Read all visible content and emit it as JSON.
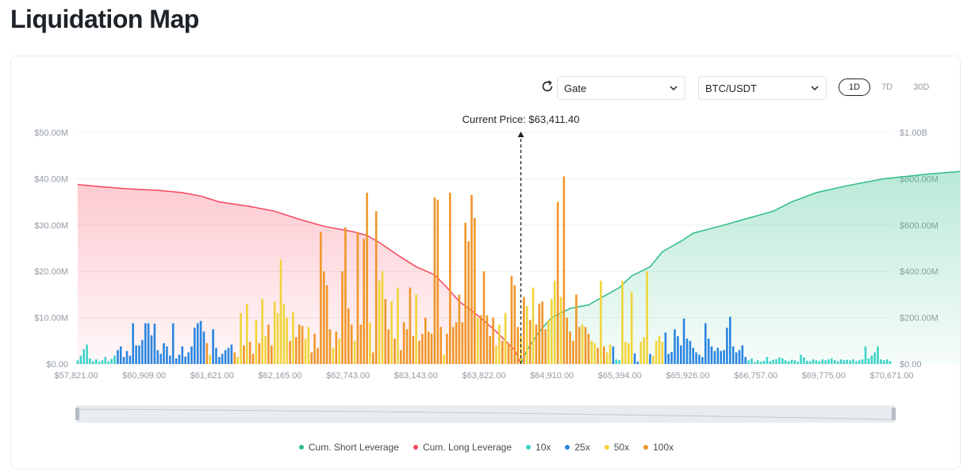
{
  "page": {
    "title": "Liquidation Map"
  },
  "controls": {
    "exchange": "Gate",
    "pair": "BTC/USDT",
    "periods": [
      "1D",
      "7D",
      "30D"
    ],
    "active_period": "1D"
  },
  "colors": {
    "cum_short": "#2ebd85",
    "cum_long": "#f6465d",
    "lev_10x": "#3dd3c9",
    "lev_25x": "#2a85e0",
    "lev_50x": "#f0d43a",
    "lev_100x": "#f0962a"
  },
  "chart_data": {
    "type": "bar",
    "current_price_label": "Current Price: $63,411.40",
    "current_price_index": 144,
    "left_axis": {
      "ticks": [
        "$0.00",
        "$10.00M",
        "$20.00M",
        "$30.00M",
        "$40.00M",
        "$50.00M"
      ],
      "max": 50
    },
    "right_axis": {
      "ticks": [
        "$0.00",
        "$200.00M",
        "$400.00M",
        "$600.00M",
        "$800.00M",
        "$1.00B"
      ],
      "max": 1000
    },
    "x_tick_labels": [
      "$57,821.00",
      "$60,909.00",
      "$61,621.00",
      "$62,165.00",
      "$62,743.00",
      "$63,143.00",
      "$63,822.00",
      "$64,910.00",
      "$65,394.00",
      "$65,926.00",
      "$66,757.00",
      "$69,775.00",
      "$70,671.00"
    ],
    "bars": [
      {
        "v": 0.8,
        "l": "10x"
      },
      {
        "v": 1.8,
        "l": "10x"
      },
      {
        "v": 3.2,
        "l": "10x"
      },
      {
        "v": 4.2,
        "l": "10x"
      },
      {
        "v": 1.2,
        "l": "10x"
      },
      {
        "v": 0.6,
        "l": "10x"
      },
      {
        "v": 1.0,
        "l": "10x"
      },
      {
        "v": 0.5,
        "l": "10x"
      },
      {
        "v": 0.8,
        "l": "10x"
      },
      {
        "v": 1.5,
        "l": "10x"
      },
      {
        "v": 0.6,
        "l": "10x"
      },
      {
        "v": 1.1,
        "l": "10x"
      },
      {
        "v": 1.8,
        "l": "10x"
      },
      {
        "v": 3.0,
        "l": "25x"
      },
      {
        "v": 3.8,
        "l": "25x"
      },
      {
        "v": 1.5,
        "l": "25x"
      },
      {
        "v": 2.8,
        "l": "25x"
      },
      {
        "v": 1.8,
        "l": "25x"
      },
      {
        "v": 8.8,
        "l": "25x"
      },
      {
        "v": 4.0,
        "l": "25x"
      },
      {
        "v": 4.0,
        "l": "25x"
      },
      {
        "v": 5.2,
        "l": "25x"
      },
      {
        "v": 8.8,
        "l": "25x"
      },
      {
        "v": 8.8,
        "l": "25x"
      },
      {
        "v": 6.2,
        "l": "25x"
      },
      {
        "v": 8.7,
        "l": "25x"
      },
      {
        "v": 3.0,
        "l": "25x"
      },
      {
        "v": 2.2,
        "l": "25x"
      },
      {
        "v": 4.5,
        "l": "25x"
      },
      {
        "v": 3.8,
        "l": "25x"
      },
      {
        "v": 1.8,
        "l": "25x"
      },
      {
        "v": 8.8,
        "l": "25x"
      },
      {
        "v": 1.2,
        "l": "25x"
      },
      {
        "v": 2.0,
        "l": "25x"
      },
      {
        "v": 3.8,
        "l": "25x"
      },
      {
        "v": 1.6,
        "l": "25x"
      },
      {
        "v": 2.5,
        "l": "25x"
      },
      {
        "v": 3.8,
        "l": "25x"
      },
      {
        "v": 7.8,
        "l": "25x"
      },
      {
        "v": 8.8,
        "l": "25x"
      },
      {
        "v": 9.3,
        "l": "25x"
      },
      {
        "v": 7.0,
        "l": "25x"
      },
      {
        "v": 4.5,
        "l": "100x"
      },
      {
        "v": 2.0,
        "l": "50x"
      },
      {
        "v": 7.5,
        "l": "25x"
      },
      {
        "v": 3.5,
        "l": "25x"
      },
      {
        "v": 1.5,
        "l": "25x"
      },
      {
        "v": 2.2,
        "l": "25x"
      },
      {
        "v": 3.0,
        "l": "25x"
      },
      {
        "v": 3.5,
        "l": "25x"
      },
      {
        "v": 4.2,
        "l": "25x"
      },
      {
        "v": 2.5,
        "l": "100x"
      },
      {
        "v": 1.5,
        "l": "50x"
      },
      {
        "v": 11.0,
        "l": "50x"
      },
      {
        "v": 4.0,
        "l": "100x"
      },
      {
        "v": 13.0,
        "l": "50x"
      },
      {
        "v": 4.8,
        "l": "100x"
      },
      {
        "v": 2.2,
        "l": "100x"
      },
      {
        "v": 9.5,
        "l": "50x"
      },
      {
        "v": 4.5,
        "l": "100x"
      },
      {
        "v": 14.0,
        "l": "50x"
      },
      {
        "v": 6.0,
        "l": "50x"
      },
      {
        "v": 8.5,
        "l": "100x"
      },
      {
        "v": 4.0,
        "l": "100x"
      },
      {
        "v": 13.5,
        "l": "50x"
      },
      {
        "v": 11.0,
        "l": "50x"
      },
      {
        "v": 22.5,
        "l": "50x"
      },
      {
        "v": 13.0,
        "l": "50x"
      },
      {
        "v": 10.0,
        "l": "50x"
      },
      {
        "v": 5.0,
        "l": "100x"
      },
      {
        "v": 11.2,
        "l": "50x"
      },
      {
        "v": 5.8,
        "l": "100x"
      },
      {
        "v": 8.5,
        "l": "100x"
      },
      {
        "v": 8.2,
        "l": "100x"
      },
      {
        "v": 5.5,
        "l": "50x"
      },
      {
        "v": 8.0,
        "l": "50x"
      },
      {
        "v": 2.5,
        "l": "100x"
      },
      {
        "v": 6.5,
        "l": "100x"
      },
      {
        "v": 3.5,
        "l": "100x"
      },
      {
        "v": 28.5,
        "l": "100x"
      },
      {
        "v": 20.0,
        "l": "100x"
      },
      {
        "v": 17.0,
        "l": "100x"
      },
      {
        "v": 7.5,
        "l": "100x"
      },
      {
        "v": 3.5,
        "l": "50x"
      },
      {
        "v": 7.0,
        "l": "100x"
      },
      {
        "v": 5.5,
        "l": "50x"
      },
      {
        "v": 20.0,
        "l": "100x"
      },
      {
        "v": 29.5,
        "l": "100x"
      },
      {
        "v": 12.0,
        "l": "100x"
      },
      {
        "v": 8.5,
        "l": "100x"
      },
      {
        "v": 5.0,
        "l": "50x"
      },
      {
        "v": 28.5,
        "l": "100x"
      },
      {
        "v": 8.5,
        "l": "100x"
      },
      {
        "v": 27.0,
        "l": "100x"
      },
      {
        "v": 37.0,
        "l": "100x"
      },
      {
        "v": 9.0,
        "l": "50x"
      },
      {
        "v": 2.5,
        "l": "100x"
      },
      {
        "v": 33.0,
        "l": "100x"
      },
      {
        "v": 18.0,
        "l": "50x"
      },
      {
        "v": 20.0,
        "l": "50x"
      },
      {
        "v": 14.0,
        "l": "100x"
      },
      {
        "v": 7.5,
        "l": "100x"
      },
      {
        "v": 13.5,
        "l": "50x"
      },
      {
        "v": 5.5,
        "l": "100x"
      },
      {
        "v": 16.5,
        "l": "50x"
      },
      {
        "v": 3.0,
        "l": "100x"
      },
      {
        "v": 9.0,
        "l": "100x"
      },
      {
        "v": 7.5,
        "l": "100x"
      },
      {
        "v": 16.5,
        "l": "100x"
      },
      {
        "v": 6.0,
        "l": "100x"
      },
      {
        "v": 15.0,
        "l": "50x"
      },
      {
        "v": 5.0,
        "l": "100x"
      },
      {
        "v": 6.5,
        "l": "100x"
      },
      {
        "v": 10.0,
        "l": "100x"
      },
      {
        "v": 7.0,
        "l": "100x"
      },
      {
        "v": 6.5,
        "l": "100x"
      },
      {
        "v": 36.0,
        "l": "100x"
      },
      {
        "v": 35.5,
        "l": "100x"
      },
      {
        "v": 8.0,
        "l": "100x"
      },
      {
        "v": 2.0,
        "l": "50x"
      },
      {
        "v": 6.5,
        "l": "100x"
      },
      {
        "v": 37.0,
        "l": "100x"
      },
      {
        "v": 8.0,
        "l": "100x"
      },
      {
        "v": 9.0,
        "l": "100x"
      },
      {
        "v": 15.0,
        "l": "100x"
      },
      {
        "v": 9.0,
        "l": "100x"
      },
      {
        "v": 30.5,
        "l": "100x"
      },
      {
        "v": 26.5,
        "l": "100x"
      },
      {
        "v": 36.5,
        "l": "100x"
      },
      {
        "v": 31.5,
        "l": "100x"
      },
      {
        "v": 10.0,
        "l": "50x"
      },
      {
        "v": 10.5,
        "l": "100x"
      },
      {
        "v": 20.0,
        "l": "100x"
      },
      {
        "v": 10.5,
        "l": "100x"
      },
      {
        "v": 6.0,
        "l": "100x"
      },
      {
        "v": 10.0,
        "l": "100x"
      },
      {
        "v": 4.0,
        "l": "50x"
      },
      {
        "v": 8.5,
        "l": "50x"
      },
      {
        "v": 5.0,
        "l": "100x"
      },
      {
        "v": 11.0,
        "l": "50x"
      },
      {
        "v": 4.5,
        "l": "100x"
      },
      {
        "v": 19.0,
        "l": "100x"
      },
      {
        "v": 17.0,
        "l": "100x"
      },
      {
        "v": 8.0,
        "l": "100x"
      },
      {
        "v": 6.0,
        "l": "50x"
      },
      {
        "v": 14.5,
        "l": "100x"
      },
      {
        "v": 12.5,
        "l": "50x"
      },
      {
        "v": 9.5,
        "l": "100x"
      },
      {
        "v": 16.5,
        "l": "50x"
      },
      {
        "v": 8.5,
        "l": "100x"
      },
      {
        "v": 13.0,
        "l": "100x"
      },
      {
        "v": 13.5,
        "l": "100x"
      },
      {
        "v": 7.5,
        "l": "100x"
      },
      {
        "v": 9.5,
        "l": "50x"
      },
      {
        "v": 14.0,
        "l": "50x"
      },
      {
        "v": 18.0,
        "l": "50x"
      },
      {
        "v": 35.0,
        "l": "100x"
      },
      {
        "v": 14.5,
        "l": "50x"
      },
      {
        "v": 40.5,
        "l": "100x"
      },
      {
        "v": 10.0,
        "l": "100x"
      },
      {
        "v": 7.0,
        "l": "100x"
      },
      {
        "v": 5.0,
        "l": "100x"
      },
      {
        "v": 15.0,
        "l": "100x"
      },
      {
        "v": 8.0,
        "l": "100x"
      },
      {
        "v": 8.5,
        "l": "50x"
      },
      {
        "v": 8.0,
        "l": "100x"
      },
      {
        "v": 6.5,
        "l": "100x"
      },
      {
        "v": 5.0,
        "l": "50x"
      },
      {
        "v": 4.5,
        "l": "50x"
      },
      {
        "v": 3.5,
        "l": "100x"
      },
      {
        "v": 18.0,
        "l": "50x"
      },
      {
        "v": 3.8,
        "l": "100x"
      },
      {
        "v": 2.5,
        "l": "50x"
      },
      {
        "v": 4.2,
        "l": "50x"
      },
      {
        "v": 3.8,
        "l": "25x"
      },
      {
        "v": 1.0,
        "l": "10x"
      },
      {
        "v": 0.8,
        "l": "10x"
      },
      {
        "v": 18.0,
        "l": "50x"
      },
      {
        "v": 4.8,
        "l": "50x"
      },
      {
        "v": 4.5,
        "l": "50x"
      },
      {
        "v": 15.5,
        "l": "50x"
      },
      {
        "v": 2.3,
        "l": "25x"
      },
      {
        "v": 0.5,
        "l": "25x"
      },
      {
        "v": 4.8,
        "l": "50x"
      },
      {
        "v": 5.8,
        "l": "50x"
      },
      {
        "v": 20.0,
        "l": "50x"
      },
      {
        "v": 2.2,
        "l": "25x"
      },
      {
        "v": 1.8,
        "l": "50x"
      },
      {
        "v": 5.0,
        "l": "50x"
      },
      {
        "v": 6.0,
        "l": "50x"
      },
      {
        "v": 4.8,
        "l": "50x"
      },
      {
        "v": 6.8,
        "l": "25x"
      },
      {
        "v": 2.2,
        "l": "25x"
      },
      {
        "v": 2.6,
        "l": "25x"
      },
      {
        "v": 7.5,
        "l": "25x"
      },
      {
        "v": 6.0,
        "l": "25x"
      },
      {
        "v": 4.0,
        "l": "25x"
      },
      {
        "v": 9.8,
        "l": "25x"
      },
      {
        "v": 5.5,
        "l": "25x"
      },
      {
        "v": 5.0,
        "l": "25x"
      },
      {
        "v": 3.5,
        "l": "25x"
      },
      {
        "v": 2.5,
        "l": "25x"
      },
      {
        "v": 2.0,
        "l": "25x"
      },
      {
        "v": 1.5,
        "l": "25x"
      },
      {
        "v": 8.8,
        "l": "25x"
      },
      {
        "v": 5.5,
        "l": "25x"
      },
      {
        "v": 3.8,
        "l": "25x"
      },
      {
        "v": 2.8,
        "l": "25x"
      },
      {
        "v": 3.5,
        "l": "25x"
      },
      {
        "v": 2.8,
        "l": "25x"
      },
      {
        "v": 3.0,
        "l": "25x"
      },
      {
        "v": 7.8,
        "l": "25x"
      },
      {
        "v": 10.2,
        "l": "25x"
      },
      {
        "v": 3.8,
        "l": "25x"
      },
      {
        "v": 2.5,
        "l": "25x"
      },
      {
        "v": 3.0,
        "l": "25x"
      },
      {
        "v": 4.0,
        "l": "25x"
      },
      {
        "v": 1.5,
        "l": "25x"
      },
      {
        "v": 0.8,
        "l": "10x"
      },
      {
        "v": 1.2,
        "l": "10x"
      },
      {
        "v": 0.4,
        "l": "10x"
      },
      {
        "v": 0.8,
        "l": "10x"
      },
      {
        "v": 0.5,
        "l": "10x"
      },
      {
        "v": 0.7,
        "l": "10x"
      },
      {
        "v": 1.5,
        "l": "10x"
      },
      {
        "v": 0.6,
        "l": "10x"
      },
      {
        "v": 0.9,
        "l": "10x"
      },
      {
        "v": 1.0,
        "l": "10x"
      },
      {
        "v": 1.4,
        "l": "10x"
      },
      {
        "v": 1.2,
        "l": "10x"
      },
      {
        "v": 0.8,
        "l": "10x"
      },
      {
        "v": 0.6,
        "l": "10x"
      },
      {
        "v": 0.9,
        "l": "10x"
      },
      {
        "v": 0.8,
        "l": "10x"
      },
      {
        "v": 0.5,
        "l": "10x"
      },
      {
        "v": 2.0,
        "l": "10x"
      },
      {
        "v": 1.4,
        "l": "10x"
      },
      {
        "v": 0.7,
        "l": "10x"
      },
      {
        "v": 0.6,
        "l": "10x"
      },
      {
        "v": 1.0,
        "l": "10x"
      },
      {
        "v": 0.8,
        "l": "10x"
      },
      {
        "v": 0.6,
        "l": "10x"
      },
      {
        "v": 1.0,
        "l": "10x"
      },
      {
        "v": 0.8,
        "l": "10x"
      },
      {
        "v": 1.0,
        "l": "10x"
      },
      {
        "v": 1.2,
        "l": "10x"
      },
      {
        "v": 0.8,
        "l": "10x"
      },
      {
        "v": 0.6,
        "l": "10x"
      },
      {
        "v": 1.0,
        "l": "10x"
      },
      {
        "v": 0.8,
        "l": "10x"
      },
      {
        "v": 0.9,
        "l": "10x"
      },
      {
        "v": 0.8,
        "l": "10x"
      },
      {
        "v": 1.0,
        "l": "10x"
      },
      {
        "v": 0.6,
        "l": "10x"
      },
      {
        "v": 0.8,
        "l": "10x"
      },
      {
        "v": 1.0,
        "l": "10x"
      },
      {
        "v": 3.8,
        "l": "10x"
      },
      {
        "v": 1.2,
        "l": "10x"
      },
      {
        "v": 1.8,
        "l": "10x"
      },
      {
        "v": 2.5,
        "l": "10x"
      },
      {
        "v": 3.8,
        "l": "10x"
      },
      {
        "v": 1.0,
        "l": "10x"
      },
      {
        "v": 0.8,
        "l": "10x"
      },
      {
        "v": 1.0,
        "l": "10x"
      },
      {
        "v": 0.6,
        "l": "10x"
      }
    ],
    "cum_long": [
      [
        0,
        775
      ],
      [
        8,
        765
      ],
      [
        16,
        757
      ],
      [
        26,
        750
      ],
      [
        34,
        740
      ],
      [
        40,
        725
      ],
      [
        46,
        700
      ],
      [
        56,
        680
      ],
      [
        64,
        660
      ],
      [
        72,
        625
      ],
      [
        80,
        595
      ],
      [
        90,
        570
      ],
      [
        94,
        555
      ],
      [
        98,
        525
      ],
      [
        104,
        470
      ],
      [
        110,
        420
      ],
      [
        116,
        385
      ],
      [
        120,
        330
      ],
      [
        124,
        270
      ],
      [
        130,
        210
      ],
      [
        136,
        140
      ],
      [
        142,
        60
      ],
      [
        144,
        0
      ]
    ],
    "cum_short": [
      [
        144,
        0
      ],
      [
        146,
        60
      ],
      [
        150,
        140
      ],
      [
        154,
        200
      ],
      [
        160,
        240
      ],
      [
        166,
        255
      ],
      [
        172,
        300
      ],
      [
        176,
        330
      ],
      [
        180,
        380
      ],
      [
        186,
        420
      ],
      [
        190,
        485
      ],
      [
        196,
        530
      ],
      [
        200,
        565
      ],
      [
        210,
        600
      ],
      [
        218,
        630
      ],
      [
        226,
        660
      ],
      [
        232,
        700
      ],
      [
        240,
        740
      ],
      [
        250,
        770
      ],
      [
        262,
        800
      ],
      [
        276,
        820
      ],
      [
        290,
        835
      ],
      [
        304,
        850
      ],
      [
        316,
        860
      ],
      [
        330,
        872
      ],
      [
        336,
        878
      ]
    ],
    "series": [
      {
        "name": "Cum. Short Leverage"
      },
      {
        "name": "Cum. Long Leverage"
      },
      {
        "name": "10x"
      },
      {
        "name": "25x"
      },
      {
        "name": "50x"
      },
      {
        "name": "100x"
      }
    ]
  }
}
